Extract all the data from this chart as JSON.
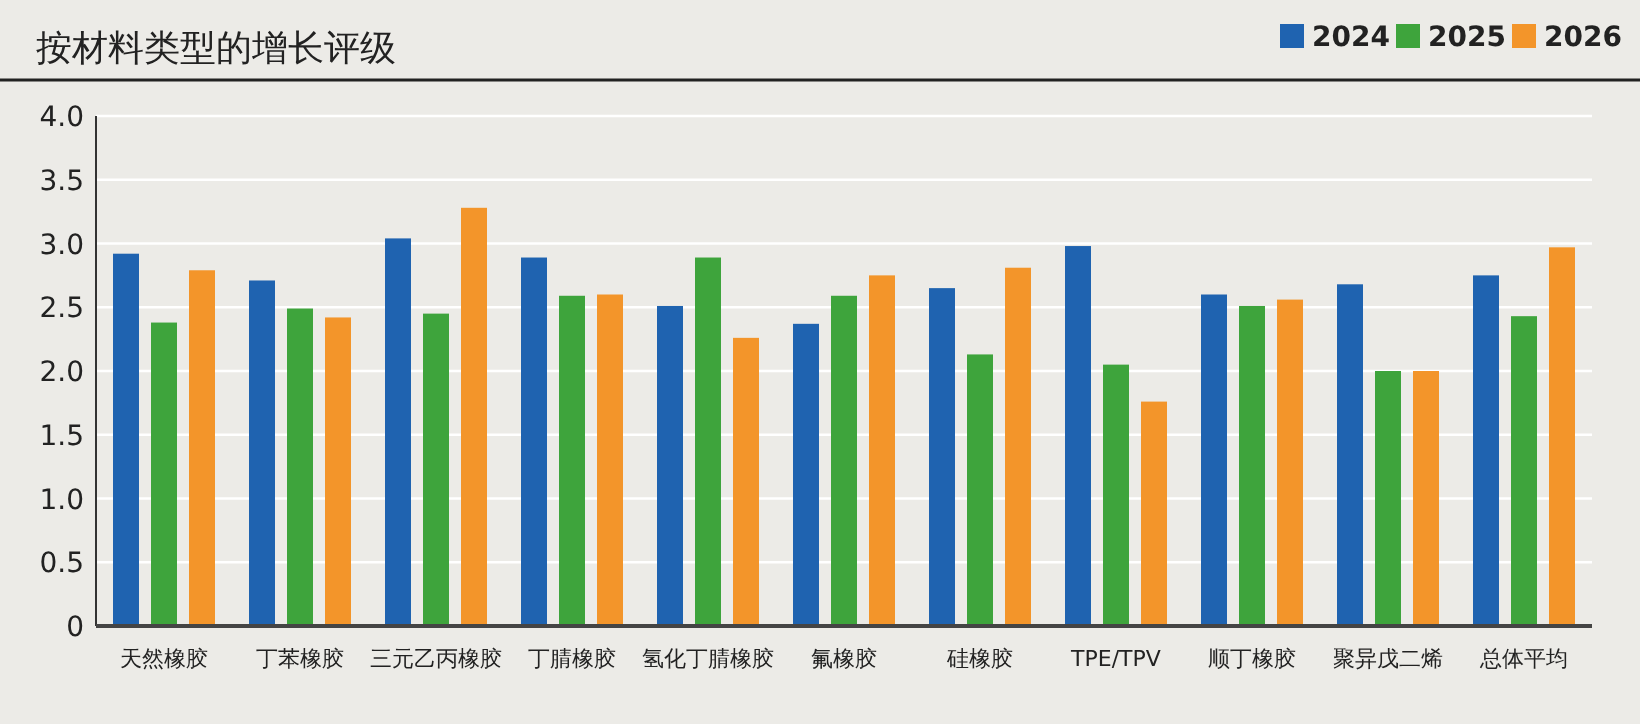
{
  "chart_data": {
    "type": "bar",
    "title": "按材料类型的增长评级",
    "categories": [
      "天然橡胶",
      "丁苯橡胶",
      "三元乙丙橡胶",
      "丁腈橡胶",
      "氢化丁腈橡胶",
      "氟橡胶",
      "硅橡胶",
      "TPE/TPV",
      "顺丁橡胶",
      "聚异戊二烯",
      "总体平均"
    ],
    "series": [
      {
        "name": "2024",
        "color": "#1f63b0",
        "values": [
          2.92,
          2.71,
          3.04,
          2.89,
          2.51,
          2.37,
          2.65,
          2.98,
          2.6,
          2.68,
          2.75
        ]
      },
      {
        "name": "2025",
        "color": "#3ea43c",
        "values": [
          2.38,
          2.49,
          2.45,
          2.59,
          2.89,
          2.59,
          2.13,
          2.05,
          2.51,
          2.0,
          2.43
        ]
      },
      {
        "name": "2026",
        "color": "#f3952a",
        "values": [
          2.79,
          2.42,
          3.28,
          2.6,
          2.26,
          2.75,
          2.81,
          1.76,
          2.56,
          2.0,
          2.97
        ]
      }
    ],
    "ylim": [
      0,
      4
    ],
    "yticks": [
      0,
      0.5,
      {
        "value": 1,
        "label": "1.0"
      },
      1.5,
      {
        "value": 2,
        "label": "2.0"
      },
      2.5,
      {
        "value": 3,
        "label": "3.0"
      },
      3.5,
      {
        "value": 4,
        "label": "4.0"
      }
    ],
    "grid": "y",
    "legend": "top right"
  }
}
